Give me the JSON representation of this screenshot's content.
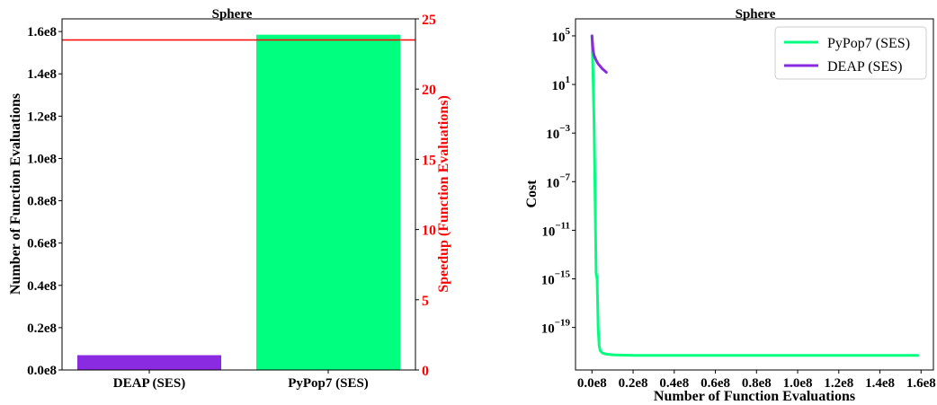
{
  "chart_data": [
    {
      "type": "bar",
      "title": "Sphere",
      "categories": [
        "DEAP (SES)",
        "PyPop7 (SES)"
      ],
      "values": [
        7000000,
        158500000
      ],
      "bar_colors": [
        "#8a2be2",
        "#00ff7f"
      ],
      "ylabel": "Number of Function Evaluations",
      "ylim": [
        0,
        166000000
      ],
      "y_ticks": [
        0,
        20000000,
        40000000,
        60000000,
        80000000,
        100000000,
        120000000,
        140000000,
        160000000
      ],
      "y_tick_labels": [
        "0.0e8",
        "0.2e8",
        "0.4e8",
        "0.6e8",
        "0.8e8",
        "1.0e8",
        "1.2e8",
        "1.4e8",
        "1.6e8"
      ],
      "secondary_axis": {
        "label": "Speedup (Function Evaluations)",
        "color": "#ff0000",
        "ylim": [
          0,
          25
        ],
        "ticks": [
          0,
          5,
          10,
          15,
          20,
          25
        ],
        "tick_labels": [
          "0",
          "5",
          "10",
          "15",
          "20",
          "25"
        ],
        "speedup_value": 23.5
      }
    },
    {
      "type": "line",
      "title": "Sphere",
      "xlabel": "Number of Function Evaluations",
      "ylabel": "Cost",
      "y_scale": "log",
      "xlim": [
        -8000000,
        166000000
      ],
      "ylim_log10": [
        -22.5,
        6.4
      ],
      "x_ticks": [
        0,
        20000000,
        40000000,
        60000000,
        80000000,
        100000000,
        120000000,
        140000000,
        160000000
      ],
      "x_tick_labels": [
        "0.0e8",
        "0.2e8",
        "0.4e8",
        "0.6e8",
        "0.8e8",
        "1.0e8",
        "1.2e8",
        "1.4e8",
        "1.6e8"
      ],
      "y_ticks_log10": [
        5,
        1,
        -3,
        -7,
        -11,
        -15,
        -19
      ],
      "y_tick_labels": [
        {
          "base": "10",
          "exp": "5"
        },
        {
          "base": "10",
          "exp": "1"
        },
        {
          "base": "10",
          "exp": "−3"
        },
        {
          "base": "10",
          "exp": "−7"
        },
        {
          "base": "10",
          "exp": "−11"
        },
        {
          "base": "10",
          "exp": "−15"
        },
        {
          "base": "10",
          "exp": "−19"
        }
      ],
      "legend_position": "top-right",
      "series": [
        {
          "name": "PyPop7 (SES)",
          "color": "#00ff7f",
          "x": [
            0,
            500000,
            1000000,
            1500000,
            2000000,
            2500000,
            3000000,
            3500000,
            4000000,
            5000000,
            7000000,
            10000000,
            20000000,
            40000000,
            60000000,
            80000000,
            100000000,
            120000000,
            140000000,
            158500000
          ],
          "log10_y": [
            5.0,
            2.0,
            -2.0,
            -8.0,
            -14.5,
            -15.0,
            -19.0,
            -20.5,
            -20.9,
            -21.1,
            -21.2,
            -21.25,
            -21.3,
            -21.3,
            -21.3,
            -21.3,
            -21.3,
            -21.3,
            -21.3,
            -21.3
          ]
        },
        {
          "name": "DEAP (SES)",
          "color": "#8a2be2",
          "x": [
            0,
            500000,
            1000000,
            2000000,
            3000000,
            4000000,
            5000000,
            6000000,
            7000000
          ],
          "log10_y": [
            5.0,
            3.9,
            3.4,
            3.0,
            2.7,
            2.5,
            2.3,
            2.15,
            2.0
          ]
        }
      ]
    }
  ]
}
